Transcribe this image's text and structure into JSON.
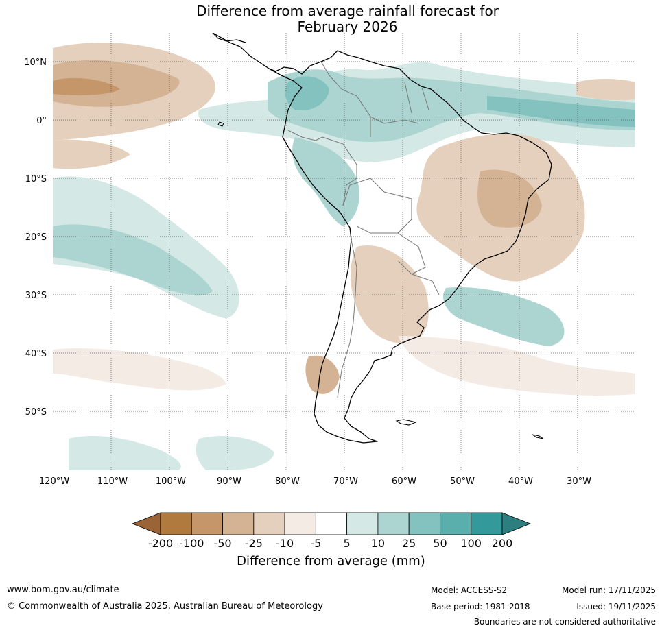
{
  "title": {
    "line1": "Difference from average rainfall forecast for",
    "line2": "February 2026"
  },
  "map": {
    "lat_labels": [
      "10°N",
      "0°",
      "10°S",
      "20°S",
      "30°S",
      "40°S",
      "50°S"
    ],
    "lon_labels": [
      "120°W",
      "110°W",
      "100°W",
      "90°W",
      "80°W",
      "70°W",
      "60°W",
      "50°W",
      "40°W",
      "30°W"
    ]
  },
  "colorbar": {
    "colors": [
      "#b07a3f",
      "#c49669",
      "#d3b393",
      "#e5d0bd",
      "#f4ebe4",
      "#ffffff",
      "#d4e8e6",
      "#acd5d2",
      "#83c2bf",
      "#5aafac",
      "#33999a"
    ],
    "extend_low_color": "#9a6436",
    "extend_high_color": "#2d7f7f",
    "tick_labels": [
      "-200",
      "-100",
      "-50",
      "-25",
      "-10",
      "-5",
      "5",
      "10",
      "25",
      "50",
      "100",
      "200"
    ],
    "title": "Difference from average (mm)"
  },
  "footer": {
    "website": "www.bom.gov.au/climate",
    "copyright": "© Commonwealth of Australia 2025, Australian Bureau of Meteorology",
    "model": "Model: ACCESS-S2",
    "base_period": "Base period: 1981-2018",
    "model_run": "Model run: 17/11/2025",
    "issued": "Issued: 19/11/2025",
    "disclaimer": "Boundaries are not considered authoritative"
  }
}
